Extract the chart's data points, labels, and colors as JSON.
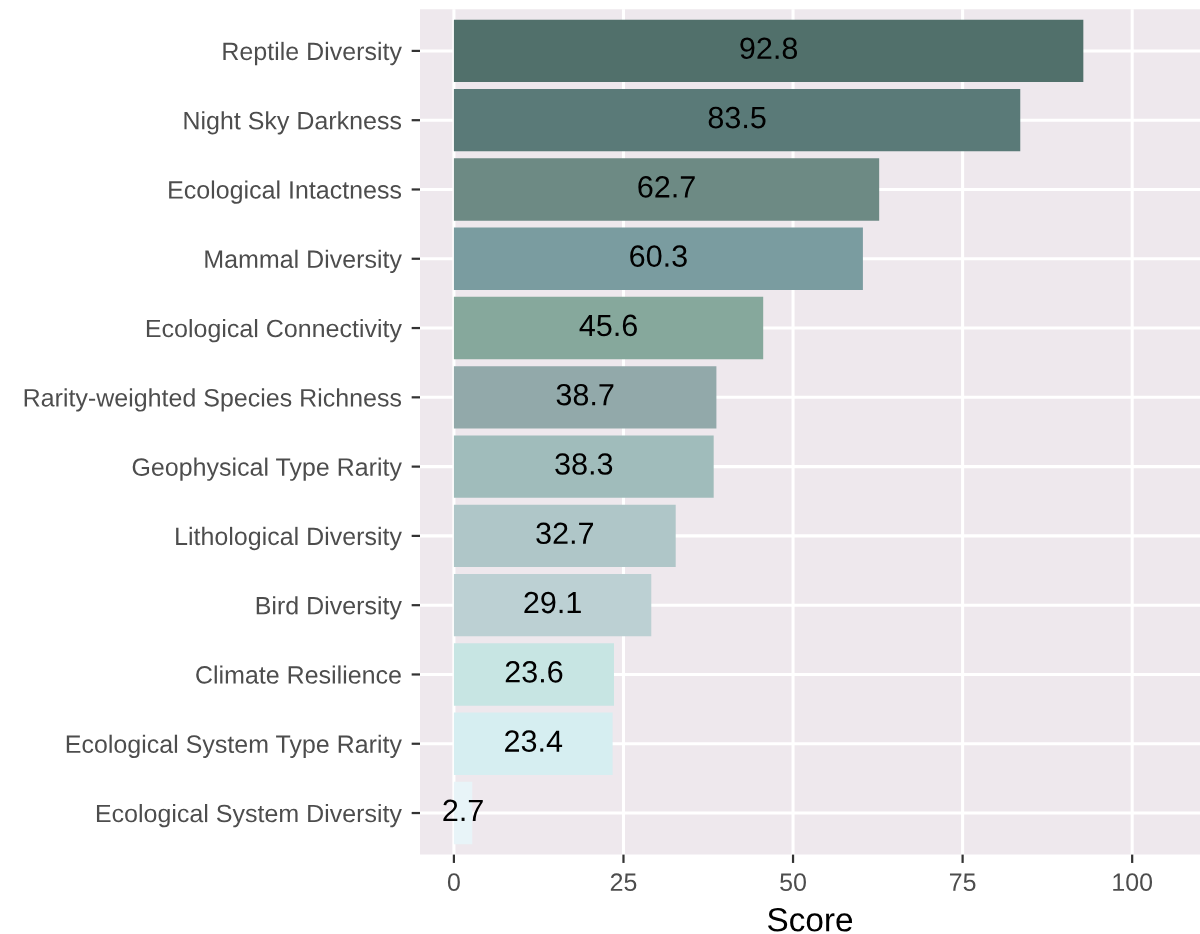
{
  "chart_data": {
    "type": "bar",
    "orientation": "horizontal",
    "xlabel": "Score",
    "categories": [
      "Reptile Diversity",
      "Night Sky Darkness",
      "Ecological Intactness",
      "Mammal Diversity",
      "Ecological Connectivity",
      "Rarity-weighted Species Richness",
      "Geophysical Type Rarity",
      "Lithological Diversity",
      "Bird Diversity",
      "Climate Resilience",
      "Ecological System Type Rarity",
      "Ecological System Diversity"
    ],
    "values": [
      92.8,
      83.5,
      62.7,
      60.3,
      45.6,
      38.7,
      38.3,
      32.7,
      29.1,
      23.6,
      23.4,
      2.7
    ],
    "colors": [
      "#51706b",
      "#5a7a78",
      "#6d8a84",
      "#7a9ca0",
      "#86a89c",
      "#92a9aa",
      "#a0bcbb",
      "#afc6c8",
      "#bcd0d3",
      "#c7e5e3",
      "#d6eef1",
      "#e8f4f8"
    ],
    "xlim": [
      -5,
      110
    ],
    "xticks": [
      0,
      25,
      50,
      75,
      100
    ],
    "grid": true,
    "data_labels": true
  }
}
